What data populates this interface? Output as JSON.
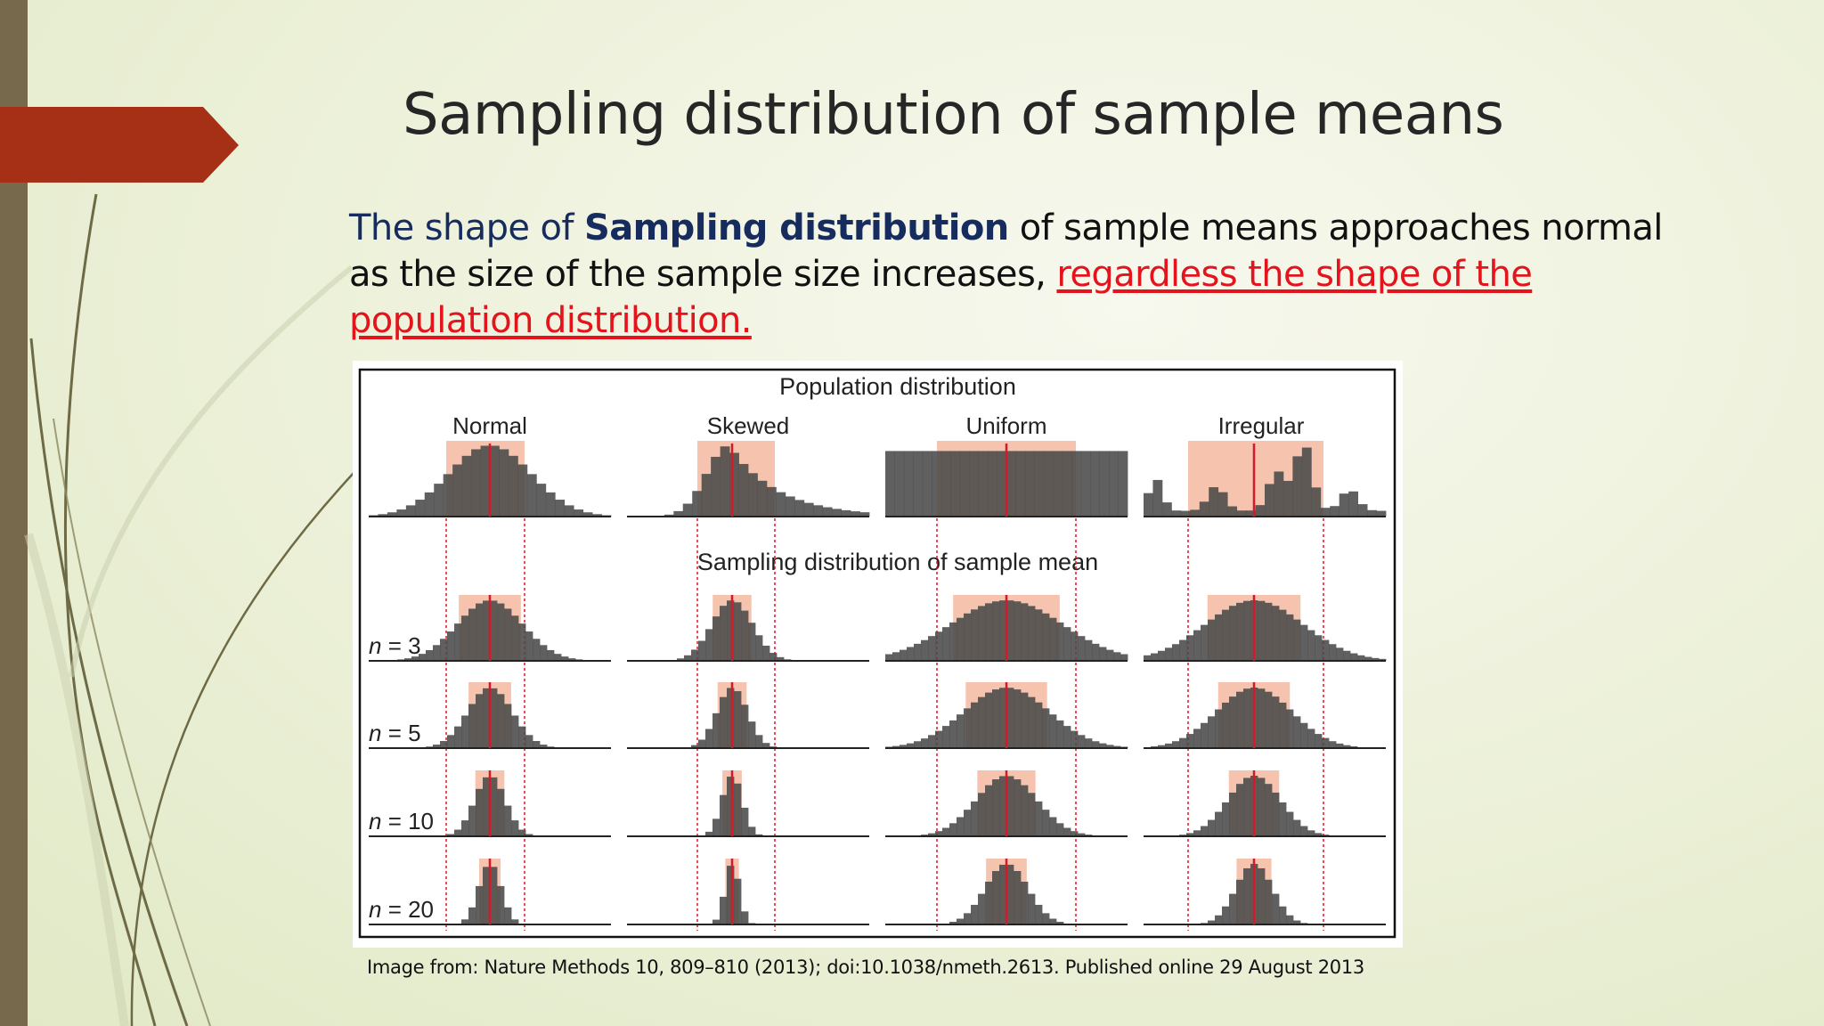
{
  "slide": {
    "title": "Sampling distribution of sample means",
    "body": {
      "part1": "The shape of ",
      "part2_bold": "Sampling distribution",
      "part3": " of sample means approaches normal as the size of the sample size increases, ",
      "part4_link": "regardless the shape of the population distribution."
    },
    "caption": "Image from: Nature Methods 10, 809–810 (2013); doi:10.1038/nmeth.2613. Published online 29 August 2013",
    "colors": {
      "accent_arrow": "#a63016",
      "side_bar": "#76694c",
      "title_text": "#262626",
      "navy_text": "#172c5e",
      "red_link": "#e3141c",
      "bar_fill": "#4a4a4a",
      "highlight": "#f3b8a0",
      "mean_line": "#d41a2a"
    }
  },
  "figure": {
    "population_title": "Population distribution",
    "sampling_title": "Sampling distribution of sample mean",
    "columns": [
      "Normal",
      "Skewed",
      "Uniform",
      "Irregular"
    ],
    "rows": [
      "n = 3",
      "n = 5",
      "n = 10",
      "n = 20"
    ]
  }
}
